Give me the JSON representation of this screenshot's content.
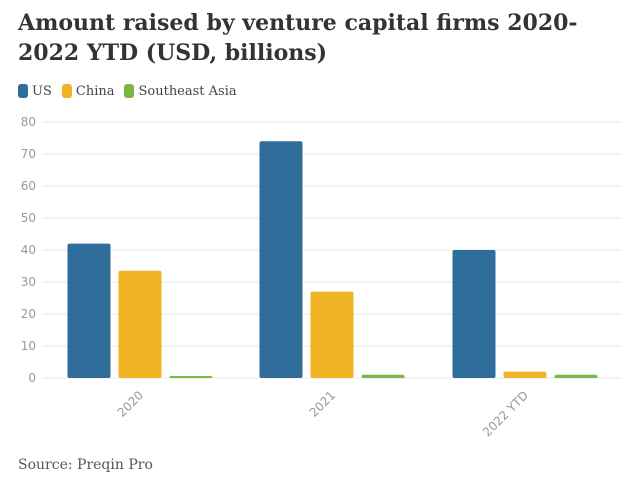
{
  "title": "Amount raised by venture capital firms 2020-2022 YTD (USD, billions)",
  "source": "Source: Preqin Pro",
  "colors": {
    "US": "#2f6e9a",
    "China": "#f0b323",
    "Southeast Asia": "#7ab648",
    "grid": "#e6e6e6"
  },
  "chart_data": {
    "type": "bar",
    "title": "Amount raised by venture capital firms 2020-2022 YTD (USD, billions)",
    "categories": [
      "2020",
      "2021",
      "2022 YTD"
    ],
    "series": [
      {
        "name": "US",
        "values": [
          42,
          74,
          40
        ]
      },
      {
        "name": "China",
        "values": [
          33.5,
          27,
          2
        ]
      },
      {
        "name": "Southeast Asia",
        "values": [
          0.4,
          1,
          1
        ]
      }
    ],
    "ylim": [
      0,
      80
    ],
    "yticks": [
      0,
      10,
      20,
      30,
      40,
      50,
      60,
      70,
      80
    ],
    "xlabel": "",
    "ylabel": "",
    "grid": true,
    "legend": "top-left"
  }
}
